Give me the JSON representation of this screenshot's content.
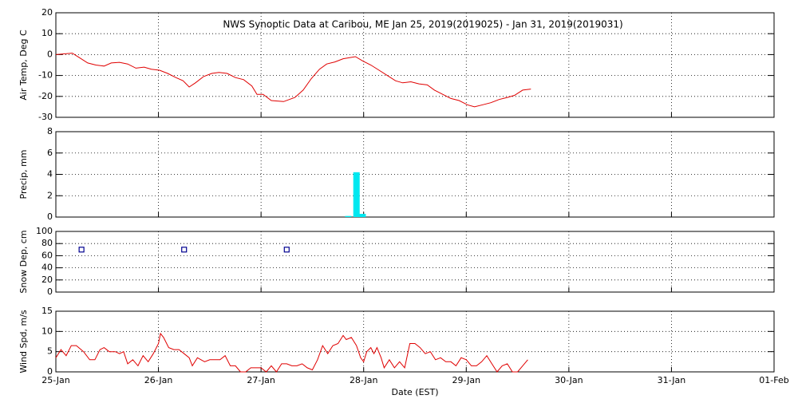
{
  "chart_data": [
    {
      "type": "line",
      "title": "NWS Synoptic Data at Caribou, ME   Jan 25, 2019(2019025) - Jan 31, 2019(2019031)",
      "y_label": "Air Temp, Deg C",
      "color": "#e00000",
      "grid": true,
      "xlim": [
        0,
        7
      ],
      "xticks": [
        0,
        1,
        2,
        3,
        4,
        5,
        6,
        7
      ],
      "ylim": [
        -30,
        20
      ],
      "yticks": [
        20,
        10,
        0,
        -10,
        -20,
        -30
      ],
      "x": [
        0,
        0.16,
        0.23,
        0.31,
        0.39,
        0.47,
        0.54,
        0.62,
        0.7,
        0.78,
        0.86,
        0.93,
        1.01,
        1.09,
        1.17,
        1.24,
        1.3,
        1.36,
        1.44,
        1.52,
        1.59,
        1.67,
        1.75,
        1.83,
        1.91,
        1.96,
        2.02,
        2.1,
        2.22,
        2.33,
        2.41,
        2.49,
        2.57,
        2.64,
        2.72,
        2.8,
        2.92,
        2.99,
        3.07,
        3.15,
        3.23,
        3.31,
        3.38,
        3.46,
        3.54,
        3.62,
        3.69,
        3.77,
        3.85,
        3.93,
        4.01,
        4.08,
        4.16,
        4.24,
        4.32,
        4.4,
        4.47,
        4.55,
        4.63
      ],
      "values": [
        0,
        0.7,
        -1.5,
        -4,
        -5,
        -5.5,
        -4,
        -3.7,
        -4.5,
        -6.5,
        -6,
        -7,
        -7.5,
        -9,
        -11,
        -12.5,
        -15.5,
        -13.5,
        -10.5,
        -9,
        -8.5,
        -9,
        -11,
        -12,
        -15,
        -19,
        -19,
        -22,
        -22.5,
        -20.5,
        -17,
        -11.5,
        -7,
        -4.5,
        -3.5,
        -2,
        -1,
        -3,
        -5,
        -7.5,
        -10,
        -12.5,
        -13.5,
        -13,
        -14,
        -14.5,
        -17,
        -19,
        -21,
        -22,
        -24,
        -25,
        -24,
        -23,
        -21.5,
        -20.5,
        -19.5,
        -17,
        -16.5
      ]
    },
    {
      "type": "bar",
      "y_label": "Precip, mm",
      "color": "#00e8f0",
      "grid": true,
      "xlim": [
        0,
        7
      ],
      "xticks": [
        0,
        1,
        2,
        3,
        4,
        5,
        6,
        7
      ],
      "ylim": [
        0,
        8
      ],
      "yticks": [
        0,
        2,
        4,
        6,
        8
      ],
      "x": [
        2.85,
        2.93,
        2.99
      ],
      "values": [
        0.1,
        4.2,
        0.3
      ]
    },
    {
      "type": "scatter",
      "y_label": "Snow Dep, cm",
      "color": "#000090",
      "grid": true,
      "xlim": [
        0,
        7
      ],
      "xticks": [
        0,
        1,
        2,
        3,
        4,
        5,
        6,
        7
      ],
      "ylim": [
        0,
        100
      ],
      "yticks": [
        0,
        20,
        40,
        60,
        80,
        100
      ],
      "x": [
        0.25,
        1.25,
        2.25
      ],
      "values": [
        70,
        70,
        70
      ]
    },
    {
      "type": "line",
      "y_label": "Wind Spd, m/s",
      "x_label": "Date (EST)",
      "color": "#e00000",
      "grid": true,
      "xlim": [
        0,
        7
      ],
      "xticks": [
        {
          "value": 0,
          "label": "25-Jan"
        },
        {
          "value": 1,
          "label": "26-Jan"
        },
        {
          "value": 2,
          "label": "27-Jan"
        },
        {
          "value": 3,
          "label": "28-Jan"
        },
        {
          "value": 4,
          "label": "29-Jan"
        },
        {
          "value": 5,
          "label": "30-Jan"
        },
        {
          "value": 6,
          "label": "31-Jan"
        },
        {
          "value": 7,
          "label": "01-Feb"
        }
      ],
      "ylim": [
        0,
        15
      ],
      "yticks": [
        0,
        5,
        10,
        15
      ],
      "x": [
        0,
        0.05,
        0.1,
        0.15,
        0.2,
        0.27,
        0.33,
        0.38,
        0.43,
        0.47,
        0.52,
        0.58,
        0.62,
        0.66,
        0.7,
        0.75,
        0.8,
        0.85,
        0.9,
        0.95,
        1.0,
        1.02,
        1.05,
        1.1,
        1.15,
        1.2,
        1.25,
        1.3,
        1.33,
        1.38,
        1.45,
        1.5,
        1.55,
        1.6,
        1.65,
        1.7,
        1.75,
        1.8,
        1.85,
        1.9,
        1.95,
        2.0,
        2.05,
        2.1,
        2.15,
        2.2,
        2.25,
        2.3,
        2.35,
        2.4,
        2.45,
        2.5,
        2.55,
        2.6,
        2.65,
        2.7,
        2.75,
        2.8,
        2.83,
        2.88,
        2.93,
        2.97,
        3.0,
        3.03,
        3.07,
        3.1,
        3.13,
        3.17,
        3.2,
        3.25,
        3.3,
        3.35,
        3.4,
        3.45,
        3.5,
        3.55,
        3.6,
        3.65,
        3.7,
        3.75,
        3.8,
        3.85,
        3.9,
        3.95,
        4.0,
        4.05,
        4.1,
        4.15,
        4.2,
        4.25,
        4.3,
        4.35,
        4.4,
        4.45,
        4.5,
        4.55,
        4.6
      ],
      "values": [
        3.5,
        5.5,
        4,
        6.5,
        6.5,
        5,
        3,
        3,
        5.5,
        6,
        5,
        5,
        4.5,
        5,
        2,
        3,
        1.5,
        4,
        2.5,
        4.5,
        7,
        9.5,
        8.5,
        6,
        5.5,
        5.5,
        4.5,
        3.5,
        1.5,
        3.5,
        2.5,
        3,
        3,
        3,
        4,
        1.5,
        1.5,
        0,
        0,
        1,
        1,
        1,
        0,
        1.5,
        0,
        2,
        2,
        1.5,
        1.5,
        2,
        1,
        0.5,
        3,
        6.5,
        4.5,
        6.5,
        7,
        9,
        8,
        8.5,
        6.5,
        3.5,
        2.5,
        5,
        6,
        4.5,
        6,
        3.5,
        1,
        3,
        1,
        2.5,
        1,
        7,
        7,
        6,
        4.5,
        5,
        3,
        3.5,
        2.5,
        2.5,
        1.5,
        3.5,
        3,
        1.5,
        1.5,
        2.5,
        4,
        2,
        0,
        1.5,
        2,
        0,
        0,
        1.5,
        3
      ]
    }
  ]
}
